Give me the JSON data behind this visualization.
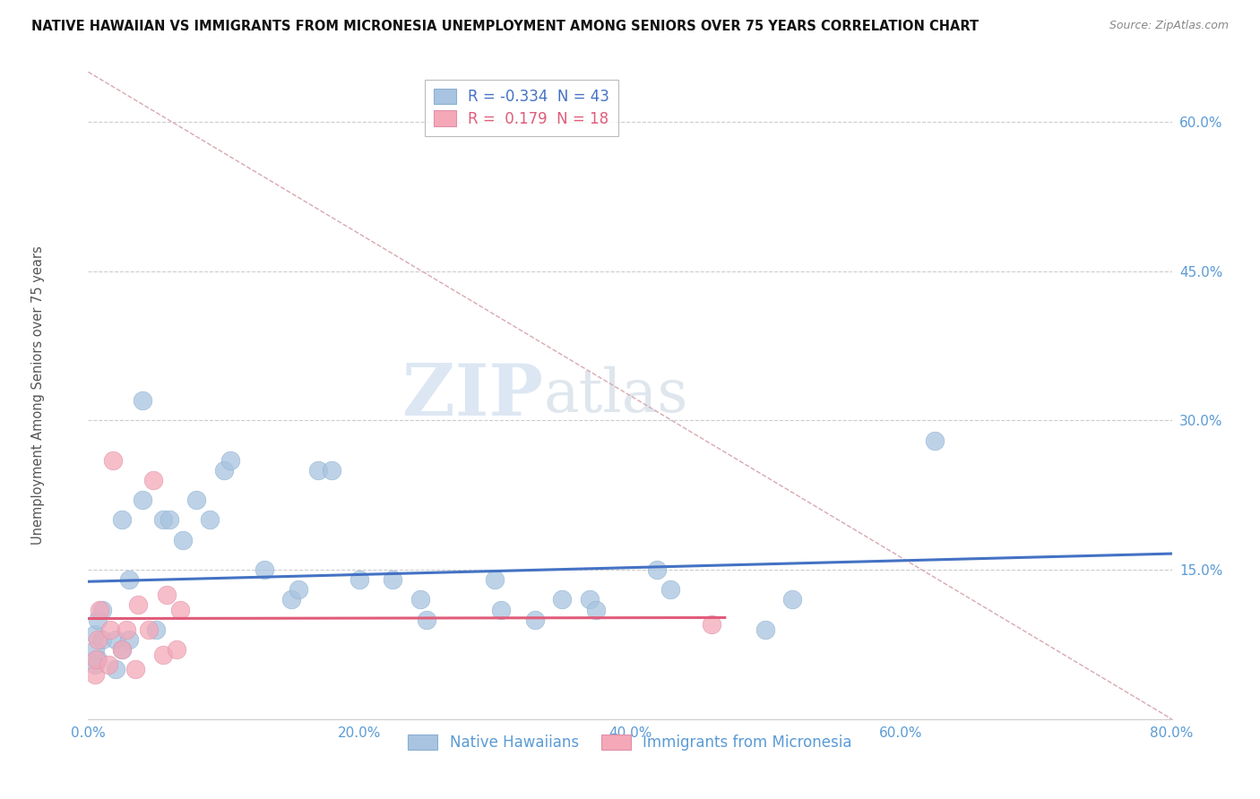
{
  "title": "NATIVE HAWAIIAN VS IMMIGRANTS FROM MICRONESIA UNEMPLOYMENT AMONG SENIORS OVER 75 YEARS CORRELATION CHART",
  "source": "Source: ZipAtlas.com",
  "ylabel": "Unemployment Among Seniors over 75 years",
  "xlim": [
    0.0,
    0.8
  ],
  "ylim": [
    0.0,
    0.65
  ],
  "xticks": [
    0.0,
    0.2,
    0.4,
    0.6,
    0.8
  ],
  "xticklabels": [
    "0.0%",
    "20.0%",
    "40.0%",
    "60.0%",
    "80.0%"
  ],
  "yticks": [
    0.0,
    0.15,
    0.3,
    0.45,
    0.6
  ],
  "yticklabels": [
    "",
    "15.0%",
    "30.0%",
    "45.0%",
    "60.0%"
  ],
  "r1": -0.334,
  "n1": 43,
  "r2": 0.179,
  "n2": 18,
  "blue_color": "#a8c4e0",
  "pink_color": "#f4a8b8",
  "line_blue": "#4472c4",
  "line_pink": "#e05c7a",
  "ref_line_color": "#d8a8b0",
  "watermark_zip": "ZIP",
  "watermark_atlas": "atlas",
  "bg_color": "#ffffff",
  "native_hawaiian_x": [
    0.005,
    0.005,
    0.005,
    0.007,
    0.007,
    0.01,
    0.01,
    0.02,
    0.02,
    0.025,
    0.025,
    0.03,
    0.03,
    0.04,
    0.04,
    0.05,
    0.055,
    0.06,
    0.07,
    0.08,
    0.09,
    0.1,
    0.105,
    0.13,
    0.15,
    0.155,
    0.17,
    0.18,
    0.2,
    0.225,
    0.245,
    0.25,
    0.3,
    0.305,
    0.33,
    0.35,
    0.37,
    0.375,
    0.42,
    0.43,
    0.5,
    0.52,
    0.625
  ],
  "native_hawaiian_y": [
    0.055,
    0.07,
    0.085,
    0.06,
    0.1,
    0.08,
    0.11,
    0.05,
    0.08,
    0.07,
    0.2,
    0.08,
    0.14,
    0.22,
    0.32,
    0.09,
    0.2,
    0.2,
    0.18,
    0.22,
    0.2,
    0.25,
    0.26,
    0.15,
    0.12,
    0.13,
    0.25,
    0.25,
    0.14,
    0.14,
    0.12,
    0.1,
    0.14,
    0.11,
    0.1,
    0.12,
    0.12,
    0.11,
    0.15,
    0.13,
    0.09,
    0.12,
    0.28
  ],
  "micronesia_x": [
    0.005,
    0.006,
    0.007,
    0.008,
    0.015,
    0.016,
    0.018,
    0.025,
    0.028,
    0.035,
    0.037,
    0.045,
    0.048,
    0.055,
    0.058,
    0.065,
    0.068,
    0.46
  ],
  "micronesia_y": [
    0.045,
    0.06,
    0.08,
    0.11,
    0.055,
    0.09,
    0.26,
    0.07,
    0.09,
    0.05,
    0.115,
    0.09,
    0.24,
    0.065,
    0.125,
    0.07,
    0.11,
    0.095
  ]
}
